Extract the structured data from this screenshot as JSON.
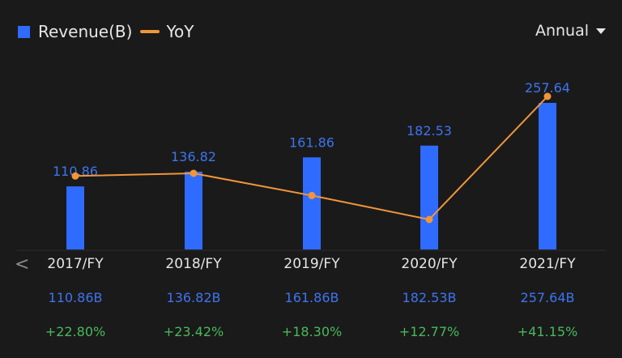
{
  "legend": {
    "revenue_label": "Revenue(B)",
    "yoy_label": "YoY"
  },
  "period_selector": {
    "selected": "Annual",
    "icon": "caret-down-icon"
  },
  "nav": {
    "prev_icon": "chevron-left-icon",
    "prev_glyph": "<"
  },
  "colors": {
    "background": "#1a1a1a",
    "bar": "#2f6bff",
    "line": "#f0953a",
    "revenue_text": "#3d74f0",
    "yoy_text": "#49b85a"
  },
  "columns": [
    {
      "year": "2017/FY",
      "bar_label": "110.86",
      "revenue": "110.86B",
      "yoy": "+22.80%"
    },
    {
      "year": "2018/FY",
      "bar_label": "136.82",
      "revenue": "136.82B",
      "yoy": "+23.42%"
    },
    {
      "year": "2019/FY",
      "bar_label": "161.86",
      "revenue": "161.86B",
      "yoy": "+18.30%"
    },
    {
      "year": "2020/FY",
      "bar_label": "182.53",
      "revenue": "182.53B",
      "yoy": "+12.77%"
    },
    {
      "year": "2021/FY",
      "bar_label": "257.64",
      "revenue": "257.64B",
      "yoy": "+41.15%"
    }
  ],
  "chart_data": {
    "type": "bar",
    "title": "",
    "categories": [
      "2017/FY",
      "2018/FY",
      "2019/FY",
      "2020/FY",
      "2021/FY"
    ],
    "series": [
      {
        "name": "Revenue(B)",
        "type": "bar",
        "values": [
          110.86,
          136.82,
          161.86,
          182.53,
          257.64
        ]
      },
      {
        "name": "YoY",
        "type": "line",
        "values": [
          22.8,
          23.42,
          18.3,
          12.77,
          41.15
        ],
        "unit": "%"
      }
    ],
    "xlabel": "",
    "ylabel": "",
    "grid": false,
    "legend_position": "top-left"
  }
}
